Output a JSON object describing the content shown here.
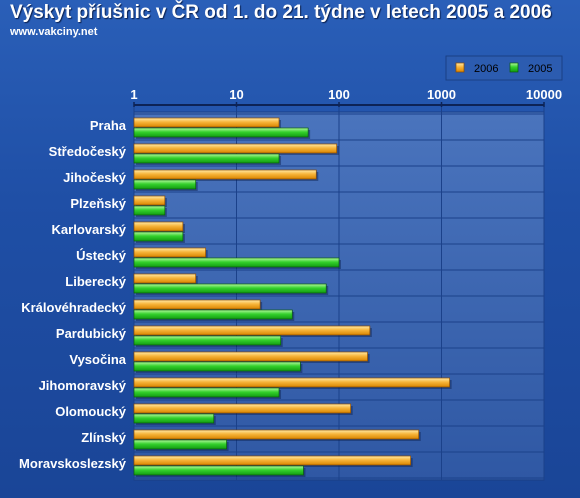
{
  "header": {
    "title": "Výskyt příušnic v ČR od 1. do 21. týdne v letech 2005 a 2006",
    "source": "www.vakciny.net"
  },
  "colors": {
    "background": "#2051a8",
    "plot_background": "#3a63ad",
    "series_2006": "#f5a623",
    "series_2005": "#2ecc2e"
  },
  "chart_data": {
    "type": "bar",
    "orientation": "horizontal",
    "title": "Výskyt příušnic v ČR od 1. do 21. týdne v letech 2005 a 2006",
    "xscale": "log",
    "xlim": [
      1,
      10000
    ],
    "xticks": [
      1,
      10,
      100,
      1000,
      10000
    ],
    "xtick_labels": [
      "1",
      "10",
      "100",
      "1000",
      "10000"
    ],
    "grid": true,
    "legend_position": "top-right",
    "categories": [
      "Praha",
      "Středočeský",
      "Jihočeský",
      "Plzeňský",
      "Karlovarský",
      "Ústecký",
      "Liberecký",
      "Královéhradecký",
      "Pardubický",
      "Vysočina",
      "Jihomoravský",
      "Olomoucký",
      "Zlínský",
      "Moravskoslezský"
    ],
    "series": [
      {
        "name": "2006",
        "values": [
          26,
          95,
          60,
          2,
          3,
          5,
          4,
          17,
          200,
          190,
          1200,
          130,
          600,
          500
        ]
      },
      {
        "name": "2005",
        "values": [
          50,
          26,
          4,
          2,
          3,
          100,
          75,
          35,
          27,
          42,
          26,
          6,
          8,
          45
        ]
      }
    ]
  }
}
